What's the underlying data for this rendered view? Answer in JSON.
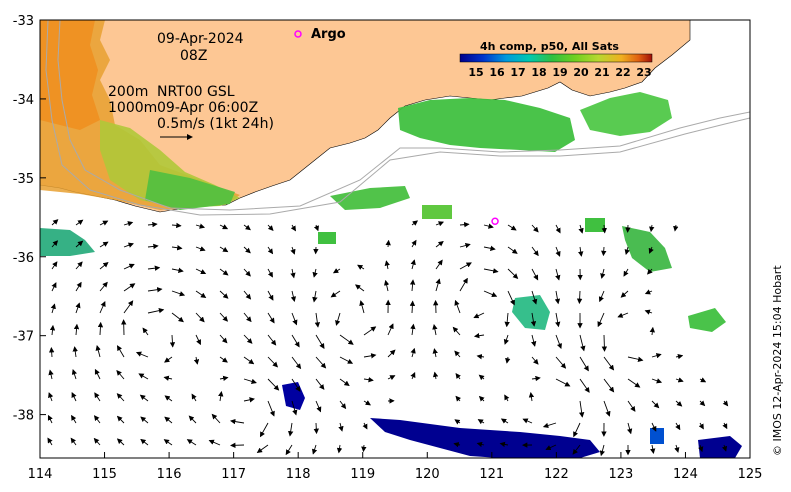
{
  "map": {
    "date_label": "09-Apr-2024",
    "time_label": "08Z",
    "legend_lines": [
      {
        "key": "200m",
        "value": "NRT00 GSL"
      },
      {
        "key": "1000m",
        "value": "09-Apr 06:00Z"
      }
    ],
    "scale_label": "0.5m/s (1kt 24h)",
    "argo_label": "Argo",
    "credit": "© IMOS 12-Apr-2024 15:04 Hobart",
    "colorbar": {
      "title": "4h comp, p50, All Sats",
      "ticks": [
        "15",
        "16",
        "17",
        "18",
        "19",
        "20",
        "21",
        "22",
        "23"
      ],
      "colors": [
        "#00008b",
        "#0033cc",
        "#0099dd",
        "#00c8b0",
        "#30c040",
        "#70d020",
        "#b8d830",
        "#f0b020",
        "#e06010",
        "#a01008"
      ]
    },
    "x_ticks": [
      "114",
      "115",
      "116",
      "117",
      "118",
      "119",
      "120",
      "121",
      "122",
      "123",
      "124",
      "125"
    ],
    "y_ticks": [
      "-33",
      "-34",
      "-35",
      "-36",
      "-37",
      "-38"
    ],
    "lon_range": [
      114,
      125
    ],
    "lat_range": [
      -38.55,
      -33
    ],
    "colors": {
      "land": "#fdc794",
      "argo": "#ff00ff",
      "bathy": "#aaaaaa"
    }
  },
  "argo_float": {
    "lon": 121.05,
    "lat": -35.55
  }
}
